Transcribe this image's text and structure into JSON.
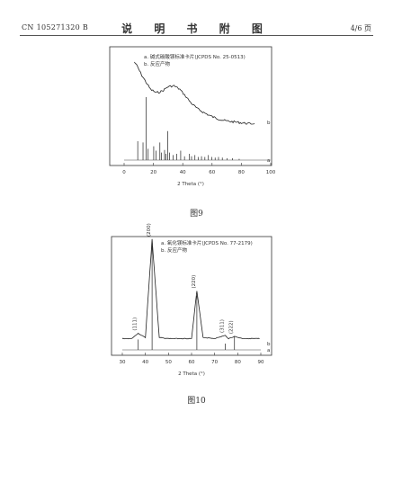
{
  "header": {
    "doc_number": "CN 105271320 B",
    "title": "说 明 书 附 图",
    "page": "4/6 页"
  },
  "captions": {
    "fig9": "图9",
    "fig10": "图10"
  },
  "chart_data": [
    {
      "type": "line",
      "title": "",
      "xlabel": "2 Theta (°)",
      "ylabel": "",
      "xlim": [
        0,
        100
      ],
      "xticks": [
        "0",
        "20",
        "40",
        "60",
        "80",
        "100"
      ],
      "legend": [
        "a. 碱式碳酸镁标准卡片(JCPDS No. 25-0513)",
        "b. 反应产物"
      ],
      "legend_position": "top-center",
      "series_labels": {
        "a": "a",
        "b": "b"
      },
      "series": [
        {
          "name": "b",
          "x": [
            7,
            9,
            12,
            15,
            18,
            22,
            26,
            30,
            34,
            38,
            42,
            46,
            50,
            55,
            60,
            65,
            70,
            75,
            80,
            85,
            89
          ],
          "y": [
            0.95,
            0.9,
            0.8,
            0.72,
            0.64,
            0.6,
            0.62,
            0.67,
            0.68,
            0.64,
            0.56,
            0.48,
            0.42,
            0.37,
            0.33,
            0.3,
            0.28,
            0.27,
            0.26,
            0.25,
            0.25
          ]
        }
      ],
      "reference_peaks": {
        "name": "a",
        "x": [
          9.3,
          12.9,
          15.1,
          16.4,
          20.2,
          21.8,
          24.4,
          25.5,
          27.6,
          28.6,
          29.8,
          31.0,
          33.4,
          35.8,
          38.6,
          41.2,
          44.6,
          46.0,
          48.3,
          50.5,
          52.8,
          55.1,
          57.5,
          59.9,
          62.1,
          64.4,
          67.0,
          70.2,
          74.0,
          78.5
        ],
        "intensity": [
          0.3,
          0.28,
          1.0,
          0.18,
          0.22,
          0.15,
          0.28,
          0.12,
          0.16,
          0.1,
          0.46,
          0.12,
          0.08,
          0.1,
          0.15,
          0.06,
          0.1,
          0.06,
          0.08,
          0.05,
          0.06,
          0.05,
          0.08,
          0.05,
          0.04,
          0.05,
          0.04,
          0.03,
          0.03,
          0.02
        ]
      }
    },
    {
      "type": "line",
      "title": "",
      "xlabel": "2 Theta (°)",
      "ylabel": "",
      "xlim": [
        30,
        90
      ],
      "xticks": [
        "30",
        "40",
        "50",
        "60",
        "70",
        "80",
        "90"
      ],
      "legend": [
        "a. 氧化镁标准卡片(JCPDS No. 77-2179)",
        "b. 反应产物"
      ],
      "legend_position": "top-right",
      "series_labels": {
        "a": "a",
        "b": "b"
      },
      "series": [
        {
          "name": "b",
          "x": [
            30,
            34,
            36.9,
            40,
            42.9,
            46,
            50,
            55,
            60,
            62.3,
            65,
            70,
            74.6,
            76,
            78.6,
            82,
            86,
            89.5
          ],
          "y": [
            0.04,
            0.04,
            0.09,
            0.05,
            1.0,
            0.05,
            0.04,
            0.04,
            0.04,
            0.5,
            0.05,
            0.04,
            0.07,
            0.04,
            0.06,
            0.04,
            0.04,
            0.04
          ]
        }
      ],
      "reference_peaks": {
        "name": "a",
        "x": [
          36.9,
          42.9,
          62.3,
          74.6,
          78.6
        ],
        "intensity": [
          0.1,
          1.0,
          0.52,
          0.06,
          0.13
        ]
      },
      "peak_labels": [
        {
          "x": 36.9,
          "label": "(111)"
        },
        {
          "x": 42.9,
          "label": "(200)"
        },
        {
          "x": 62.3,
          "label": "(220)"
        },
        {
          "x": 74.6,
          "label": "(311)"
        },
        {
          "x": 78.6,
          "label": "(222)"
        }
      ]
    }
  ]
}
